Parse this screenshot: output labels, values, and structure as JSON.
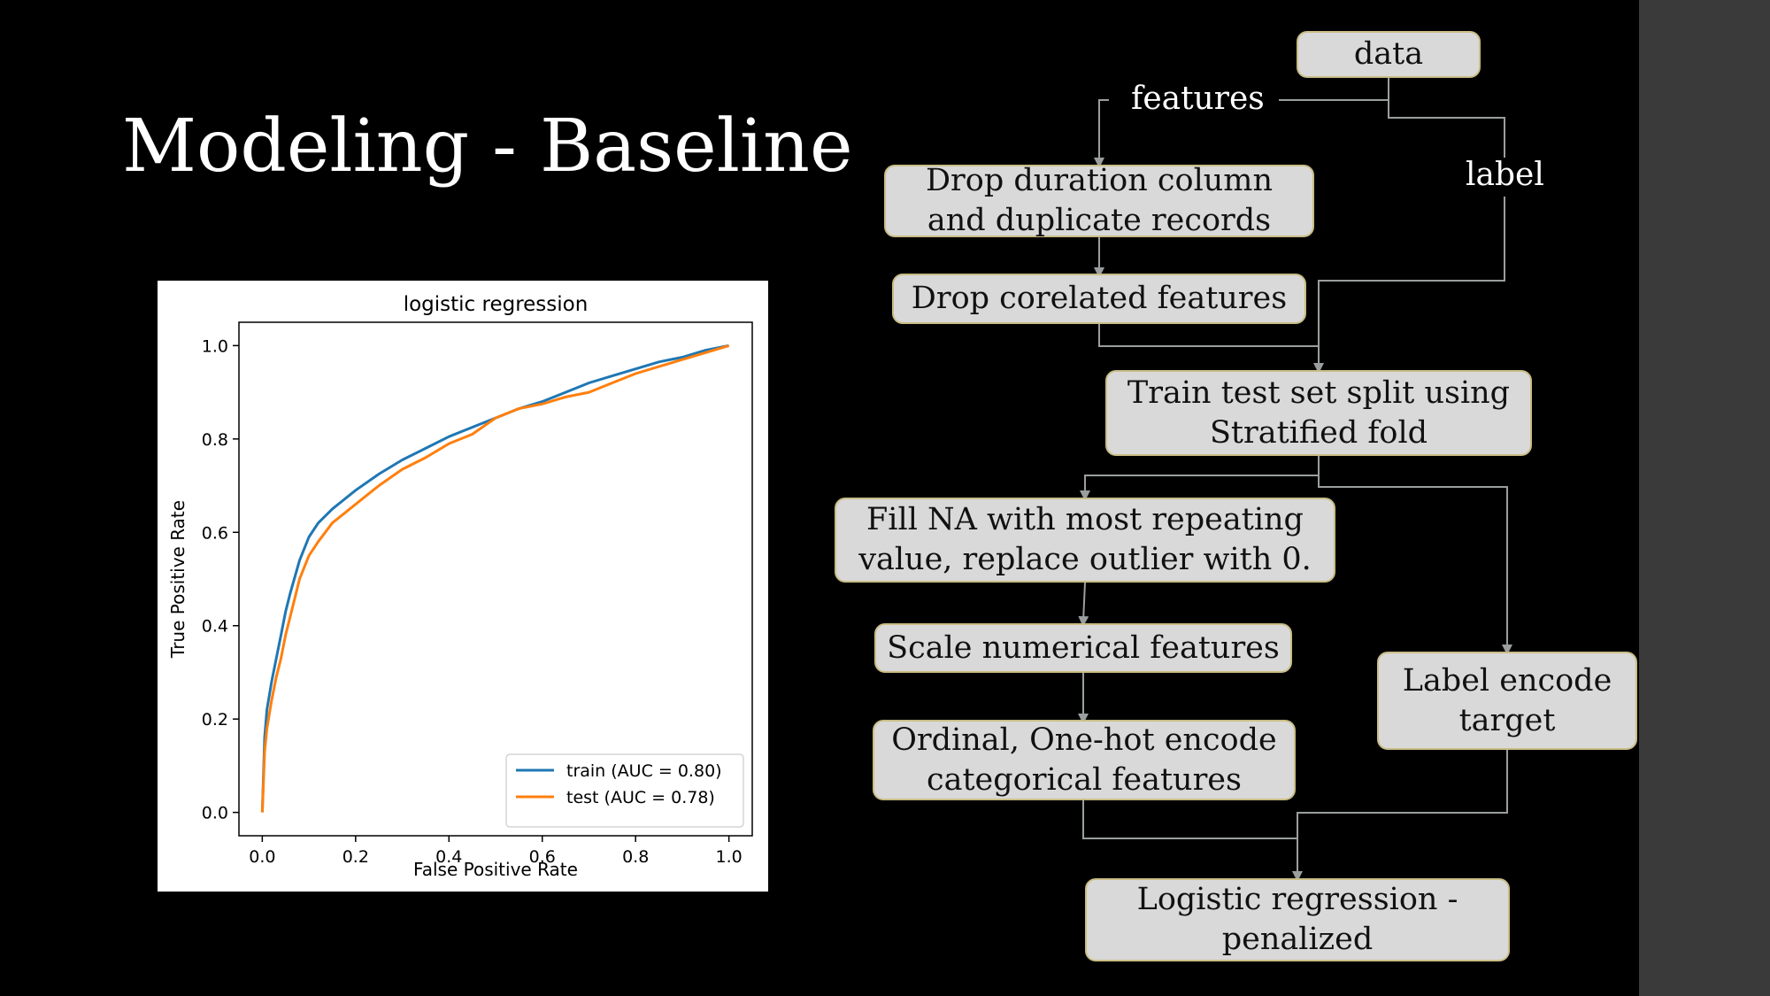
{
  "slide": {
    "title": "Modeling - Baseline"
  },
  "chart_data": {
    "type": "line",
    "title": "logistic regression",
    "xlabel": "False Positive Rate",
    "ylabel": "True Positive Rate",
    "xlim": [
      -0.05,
      1.05
    ],
    "ylim": [
      -0.05,
      1.05
    ],
    "xticks": [
      "0.0",
      "0.2",
      "0.4",
      "0.6",
      "0.8",
      "1.0"
    ],
    "yticks": [
      "0.0",
      "0.2",
      "0.4",
      "0.6",
      "0.8",
      "1.0"
    ],
    "grid": false,
    "legend_position": "lower-right",
    "series": [
      {
        "name": "train (AUC = 0.80)",
        "color": "#1f77b4",
        "x": [
          0.0,
          0.005,
          0.01,
          0.02,
          0.03,
          0.04,
          0.05,
          0.06,
          0.08,
          0.1,
          0.12,
          0.15,
          0.2,
          0.25,
          0.3,
          0.35,
          0.4,
          0.45,
          0.5,
          0.55,
          0.6,
          0.65,
          0.7,
          0.75,
          0.8,
          0.85,
          0.9,
          0.95,
          1.0
        ],
        "y": [
          0.0,
          0.16,
          0.22,
          0.28,
          0.33,
          0.38,
          0.43,
          0.47,
          0.54,
          0.59,
          0.62,
          0.65,
          0.69,
          0.725,
          0.755,
          0.78,
          0.805,
          0.825,
          0.845,
          0.865,
          0.88,
          0.9,
          0.92,
          0.935,
          0.95,
          0.965,
          0.975,
          0.99,
          1.0
        ]
      },
      {
        "name": "test (AUC = 0.78)",
        "color": "#ff7f0e",
        "x": [
          0.0,
          0.005,
          0.01,
          0.02,
          0.03,
          0.04,
          0.05,
          0.06,
          0.08,
          0.1,
          0.12,
          0.15,
          0.2,
          0.25,
          0.3,
          0.35,
          0.4,
          0.45,
          0.5,
          0.55,
          0.6,
          0.65,
          0.7,
          0.75,
          0.8,
          0.85,
          0.9,
          0.95,
          1.0
        ],
        "y": [
          0.0,
          0.13,
          0.18,
          0.24,
          0.29,
          0.33,
          0.38,
          0.42,
          0.5,
          0.55,
          0.58,
          0.62,
          0.66,
          0.7,
          0.735,
          0.76,
          0.79,
          0.81,
          0.845,
          0.865,
          0.875,
          0.89,
          0.9,
          0.92,
          0.94,
          0.955,
          0.97,
          0.985,
          1.0
        ]
      }
    ]
  },
  "flowchart": {
    "data_node": "data",
    "features_label": "features",
    "label_label": "label",
    "step_drop_duration": "Drop duration column\nand duplicate records",
    "step_drop_correlated": "Drop corelated features",
    "step_train_test_split": "Train test set split using\nStratified fold",
    "step_fill_na": "Fill NA with most repeating\nvalue, replace outlier with 0.",
    "step_scale": "Scale numerical features",
    "step_encode_categorical": "Ordinal, One-hot encode\ncategorical features",
    "step_label_encode": "Label encode\ntarget",
    "step_model": "Logistic regression -\npenalized",
    "connector_color": "#9a9e9e"
  }
}
